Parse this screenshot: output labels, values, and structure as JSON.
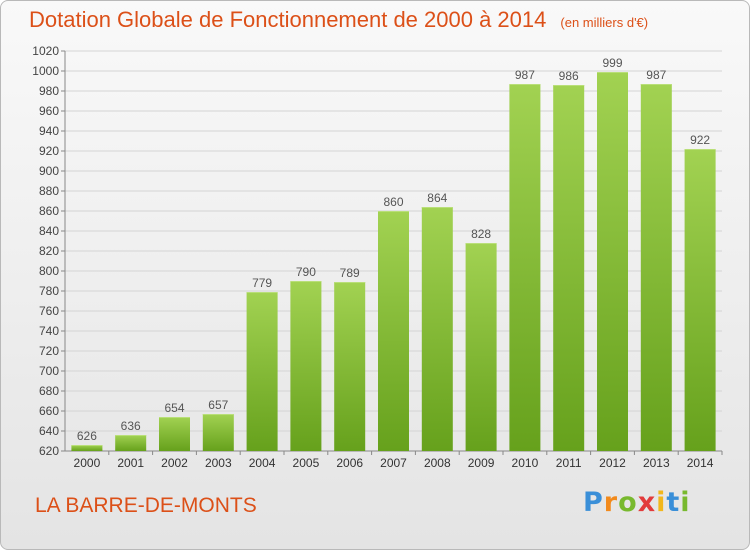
{
  "header": {
    "title": "Dotation Globale de Fonctionnement de 2000 à 2014",
    "subtitle": "(en milliers d'€)"
  },
  "footer": {
    "commune": "LA BARRE-DE-MONTS",
    "logo": {
      "letters": [
        "P",
        "r",
        "o",
        "x",
        "i",
        "t",
        "i"
      ],
      "colors": [
        "#3a8fd8",
        "#f28a1c",
        "#78b92e",
        "#e23b3b",
        "#f2b71c",
        "#3a8fd8",
        "#78b92e"
      ]
    }
  },
  "chart_data": {
    "type": "bar",
    "title": "Dotation Globale de Fonctionnement de 2000 à 2014",
    "subtitle": "(en milliers d'€)",
    "xlabel": "",
    "ylabel": "",
    "categories": [
      "2000",
      "2001",
      "2002",
      "2003",
      "2004",
      "2005",
      "2006",
      "2007",
      "2008",
      "2009",
      "2010",
      "2011",
      "2012",
      "2013",
      "2014"
    ],
    "values": [
      626,
      636,
      654,
      657,
      779,
      790,
      789,
      860,
      864,
      828,
      987,
      986,
      999,
      987,
      922
    ],
    "ylim": [
      620,
      1020
    ],
    "yticks": [
      620,
      640,
      660,
      680,
      700,
      720,
      740,
      760,
      780,
      800,
      820,
      840,
      860,
      880,
      900,
      920,
      940,
      960,
      980,
      1000,
      1020
    ],
    "grid": true,
    "data_labels": true,
    "colors": {
      "bar_top": "#a2d252",
      "bar_bottom": "#66a11c",
      "label": "#555555",
      "title": "#dc5018"
    }
  }
}
